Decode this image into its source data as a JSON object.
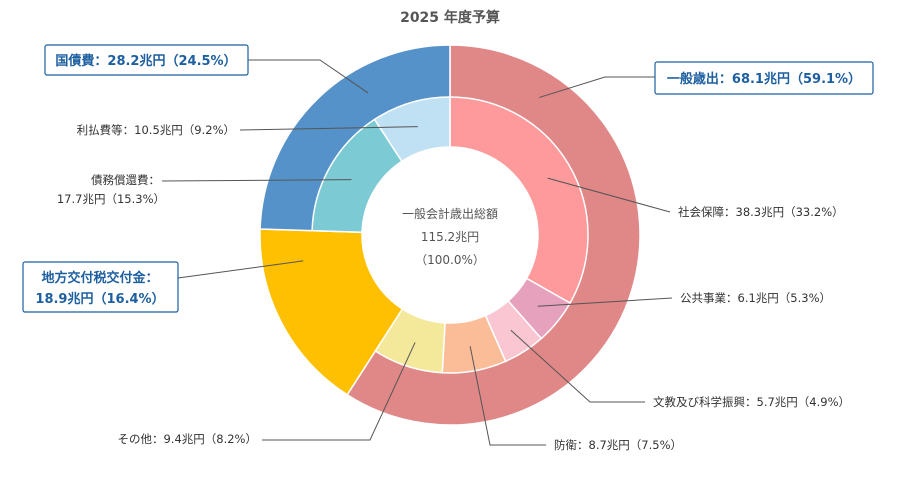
{
  "chart_data": {
    "type": "pie",
    "title": "2025 年度予算",
    "center": {
      "label": "一般会計歳出総額",
      "value": "115.2兆円",
      "share": "（100.0%）"
    },
    "outer_ring": [
      {
        "id": "kokusai",
        "name": "国債費",
        "value": 28.2,
        "percent": 24.5,
        "label": "国債費：28.2兆円（24.5%）",
        "color": "#5592c9"
      },
      {
        "id": "chiho",
        "name": "地方交付税交付金",
        "value": 18.9,
        "percent": 16.4,
        "label_lines": [
          "地方交付税交付金：",
          "18.9兆円（16.4%）"
        ],
        "color": "#fec000"
      },
      {
        "id": "ippan",
        "name": "一般歳出",
        "value": 68.1,
        "percent": 59.1,
        "label": "一般歳出：68.1兆円（59.1%）",
        "color": "#e08787"
      }
    ],
    "inner_ring": [
      {
        "id": "rihara",
        "name": "利払費等",
        "value": 10.5,
        "percent": 9.2,
        "label": "利払費等：10.5兆円（9.2%）",
        "color": "#c0e0f4"
      },
      {
        "id": "saimu",
        "name": "債務償還費",
        "value": 17.7,
        "percent": 15.3,
        "label_lines": [
          "債務償還費：",
          "17.7兆円（15.3%）"
        ],
        "color": "#7ccad4"
      },
      {
        "id": "chiho_in",
        "name": "地方交付税交付金",
        "value": 18.9,
        "percent": 16.4,
        "color": "#fec000"
      },
      {
        "id": "sonota",
        "name": "その他",
        "value": 9.4,
        "percent": 8.2,
        "label": "その他：9.4兆円（8.2%）",
        "color": "#f4e89a"
      },
      {
        "id": "boei",
        "name": "防衛",
        "value": 8.7,
        "percent": 7.5,
        "label": "防衛：8.7兆円（7.5%）",
        "color": "#fbbd98"
      },
      {
        "id": "bunkyo",
        "name": "文教及び科学振興",
        "value": 5.7,
        "percent": 4.9,
        "label": "文教及び科学振興：5.7兆円（4.9%）",
        "color": "#f9c6d2"
      },
      {
        "id": "kokyo",
        "name": "公共事業",
        "value": 6.1,
        "percent": 5.3,
        "label": "公共事業：6.1兆円（5.3%）",
        "color": "#e6a2bc"
      },
      {
        "id": "shakai",
        "name": "社会保障",
        "value": 38.3,
        "percent": 33.2,
        "label": "社会保障：38.3兆円（33.2%）",
        "color": "#fe9a9b"
      }
    ]
  }
}
